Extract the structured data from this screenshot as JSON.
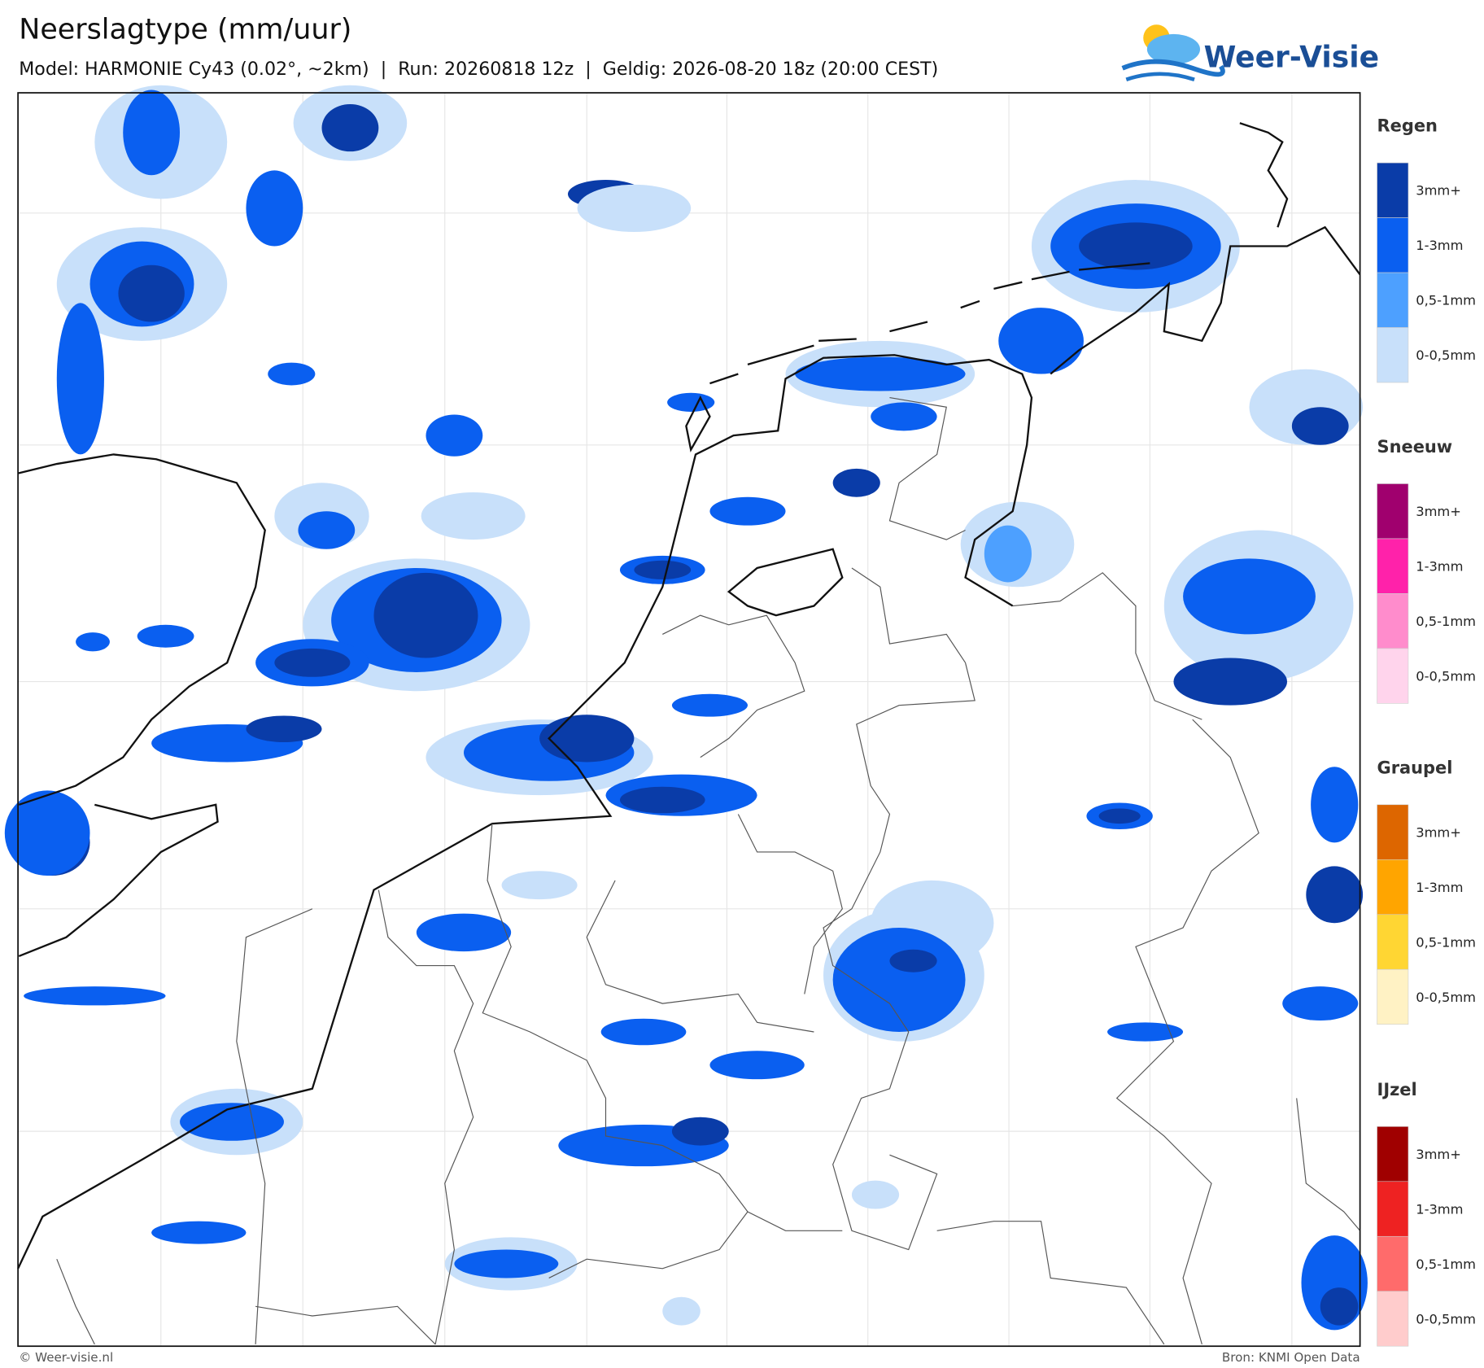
{
  "header": {
    "title": "Neerslagtype (mm/uur)",
    "subtitle": "Model: HARMONIE Cy43 (0.02°, ~2km)  |  Run: 20260818 12z  |  Geldig: 2026-08-20 18z (20:00 CEST)"
  },
  "logo": {
    "text": "Weer-Visie"
  },
  "legend": [
    {
      "title": "Regen",
      "levels": [
        {
          "label": "3mm+",
          "color": "#0a3ca8"
        },
        {
          "label": "1-3mm",
          "color": "#0a5ff0"
        },
        {
          "label": "0,5-1mm",
          "color": "#4da0ff"
        },
        {
          "label": "0-0,5mm",
          "color": "#c8e0fa"
        }
      ]
    },
    {
      "title": "Sneeuw",
      "levels": [
        {
          "label": "3mm+",
          "color": "#a0006e"
        },
        {
          "label": "1-3mm",
          "color": "#ff22aa"
        },
        {
          "label": "0,5-1mm",
          "color": "#ff8ccc"
        },
        {
          "label": "0-0,5mm",
          "color": "#ffd4ec"
        }
      ]
    },
    {
      "title": "Graupel",
      "levels": [
        {
          "label": "3mm+",
          "color": "#dd6600"
        },
        {
          "label": "1-3mm",
          "color": "#ffa500"
        },
        {
          "label": "0,5-1mm",
          "color": "#ffd633"
        },
        {
          "label": "0-0,5mm",
          "color": "#fff2c4"
        }
      ]
    },
    {
      "title": "IJzel",
      "levels": [
        {
          "label": "3mm+",
          "color": "#a00000"
        },
        {
          "label": "1-3mm",
          "color": "#ee2222"
        },
        {
          "label": "0,5-1mm",
          "color": "#ff6b6b"
        },
        {
          "label": "0-0,5mm",
          "color": "#ffcccc"
        }
      ]
    }
  ],
  "footer": {
    "left": "© Weer-visie.nl",
    "right": "Bron: KNMI Open Data"
  }
}
